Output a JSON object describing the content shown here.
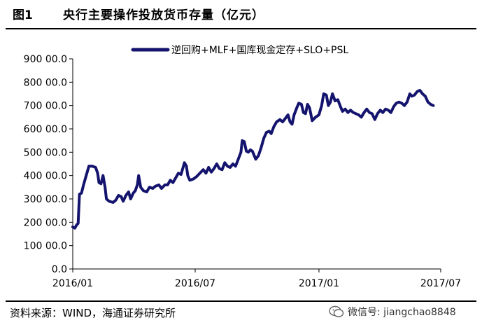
{
  "header": {
    "fig_label": "图1",
    "title": "央行主要操作投放货币存量（亿元）"
  },
  "source": "资料来源：WIND，海通证券研究所",
  "watermark": {
    "icon": "wechat-icon",
    "text": "微信号: jiangchao8848"
  },
  "chart_data": {
    "type": "line",
    "title": "",
    "xlabel": "",
    "ylabel": "",
    "legend_position": "top-right",
    "grid": false,
    "ylim": [
      0,
      90000
    ],
    "y_ticks": [
      0,
      10000,
      20000,
      30000,
      40000,
      50000,
      60000,
      70000,
      80000,
      90000
    ],
    "y_tick_labels": [
      "0.0",
      "100 00.0",
      "200 00.0",
      "300 00.0",
      "400 00.0",
      "500 00.0",
      "600 00.0",
      "700 00.0",
      "800 00.0",
      "900 00.0"
    ],
    "x_ticks": [
      "2016-01-01",
      "2016-07-01",
      "2017-01-01",
      "2017-07-01"
    ],
    "x_tick_labels": [
      "2016/01",
      "2016/07",
      "2017/01",
      "2017/07"
    ],
    "series": [
      {
        "name": "逆回购+MLF+国库现金定存+SLO+PSL",
        "color": "#14146e",
        "points": [
          [
            "2016-01-01",
            18000
          ],
          [
            "2016-01-04",
            17500
          ],
          [
            "2016-01-07",
            19000
          ],
          [
            "2016-01-09",
            19500
          ],
          [
            "2016-01-11",
            32000
          ],
          [
            "2016-01-14",
            32500
          ],
          [
            "2016-01-17",
            36000
          ],
          [
            "2016-01-21",
            40000
          ],
          [
            "2016-01-25",
            44000
          ],
          [
            "2016-01-30",
            44000
          ],
          [
            "2016-02-04",
            43500
          ],
          [
            "2016-02-07",
            41000
          ],
          [
            "2016-02-09",
            37000
          ],
          [
            "2016-02-12",
            36500
          ],
          [
            "2016-02-15",
            40000
          ],
          [
            "2016-02-18",
            35000
          ],
          [
            "2016-02-20",
            30000
          ],
          [
            "2016-02-24",
            29000
          ],
          [
            "2016-03-01",
            28500
          ],
          [
            "2016-03-05",
            29500
          ],
          [
            "2016-03-09",
            31500
          ],
          [
            "2016-03-13",
            31000
          ],
          [
            "2016-03-16",
            29000
          ],
          [
            "2016-03-20",
            31500
          ],
          [
            "2016-03-24",
            33000
          ],
          [
            "2016-03-27",
            30000
          ],
          [
            "2016-03-31",
            32500
          ],
          [
            "2016-04-03",
            33500
          ],
          [
            "2016-04-06",
            36000
          ],
          [
            "2016-04-08",
            40000
          ],
          [
            "2016-04-11",
            35000
          ],
          [
            "2016-04-15",
            33500
          ],
          [
            "2016-04-20",
            33000
          ],
          [
            "2016-04-24",
            35000
          ],
          [
            "2016-04-29",
            34500
          ],
          [
            "2016-05-03",
            35500
          ],
          [
            "2016-05-08",
            36000
          ],
          [
            "2016-05-12",
            34500
          ],
          [
            "2016-05-17",
            36000
          ],
          [
            "2016-05-21",
            36000
          ],
          [
            "2016-05-25",
            38000
          ],
          [
            "2016-05-29",
            37000
          ],
          [
            "2016-06-02",
            39000
          ],
          [
            "2016-06-06",
            41000
          ],
          [
            "2016-06-10",
            40500
          ],
          [
            "2016-06-13",
            43500
          ],
          [
            "2016-06-15",
            45500
          ],
          [
            "2016-06-18",
            44000
          ],
          [
            "2016-06-20",
            40000
          ],
          [
            "2016-06-23",
            38000
          ],
          [
            "2016-06-28",
            38500
          ],
          [
            "2016-07-03",
            39500
          ],
          [
            "2016-07-08",
            41000
          ],
          [
            "2016-07-13",
            42500
          ],
          [
            "2016-07-17",
            41000
          ],
          [
            "2016-07-21",
            43500
          ],
          [
            "2016-07-25",
            41500
          ],
          [
            "2016-07-29",
            43000
          ],
          [
            "2016-08-02",
            45000
          ],
          [
            "2016-08-06",
            43000
          ],
          [
            "2016-08-10",
            42500
          ],
          [
            "2016-08-14",
            45500
          ],
          [
            "2016-08-18",
            44000
          ],
          [
            "2016-08-22",
            43500
          ],
          [
            "2016-08-26",
            45000
          ],
          [
            "2016-08-30",
            44000
          ],
          [
            "2016-09-03",
            47000
          ],
          [
            "2016-09-07",
            50000
          ],
          [
            "2016-09-09",
            55000
          ],
          [
            "2016-09-12",
            54500
          ],
          [
            "2016-09-15",
            50500
          ],
          [
            "2016-09-18",
            50000
          ],
          [
            "2016-09-21",
            51000
          ],
          [
            "2016-09-24",
            50500
          ],
          [
            "2016-09-29",
            47000
          ],
          [
            "2016-10-03",
            48500
          ],
          [
            "2016-10-07",
            52000
          ],
          [
            "2016-10-11",
            56000
          ],
          [
            "2016-10-15",
            58500
          ],
          [
            "2016-10-19",
            59000
          ],
          [
            "2016-10-22",
            58000
          ],
          [
            "2016-10-26",
            61000
          ],
          [
            "2016-10-30",
            63000
          ],
          [
            "2016-11-04",
            64000
          ],
          [
            "2016-11-08",
            63000
          ],
          [
            "2016-11-12",
            64500
          ],
          [
            "2016-11-16",
            66000
          ],
          [
            "2016-11-19",
            63000
          ],
          [
            "2016-11-22",
            62000
          ],
          [
            "2016-11-25",
            66000
          ],
          [
            "2016-11-29",
            69000
          ],
          [
            "2016-12-02",
            71000
          ],
          [
            "2016-12-06",
            70500
          ],
          [
            "2016-12-09",
            67000
          ],
          [
            "2016-12-12",
            66500
          ],
          [
            "2016-12-15",
            70500
          ],
          [
            "2016-12-18",
            69000
          ],
          [
            "2016-12-22",
            63500
          ],
          [
            "2016-12-27",
            65000
          ],
          [
            "2017-01-01",
            66000
          ],
          [
            "2017-01-05",
            70000
          ],
          [
            "2017-01-08",
            75000
          ],
          [
            "2017-01-12",
            74500
          ],
          [
            "2017-01-15",
            70000
          ],
          [
            "2017-01-18",
            71500
          ],
          [
            "2017-01-21",
            75000
          ],
          [
            "2017-01-25",
            72000
          ],
          [
            "2017-01-29",
            72500
          ],
          [
            "2017-02-02",
            69500
          ],
          [
            "2017-02-05",
            67500
          ],
          [
            "2017-02-09",
            68500
          ],
          [
            "2017-02-13",
            67000
          ],
          [
            "2017-02-17",
            68000
          ],
          [
            "2017-02-21",
            67000
          ],
          [
            "2017-02-25",
            66500
          ],
          [
            "2017-03-01",
            66000
          ],
          [
            "2017-03-05",
            65000
          ],
          [
            "2017-03-09",
            67000
          ],
          [
            "2017-03-13",
            68500
          ],
          [
            "2017-03-17",
            67000
          ],
          [
            "2017-03-21",
            66500
          ],
          [
            "2017-03-25",
            64000
          ],
          [
            "2017-03-29",
            66500
          ],
          [
            "2017-04-02",
            68000
          ],
          [
            "2017-04-06",
            67000
          ],
          [
            "2017-04-10",
            68500
          ],
          [
            "2017-04-14",
            68000
          ],
          [
            "2017-04-18",
            67000
          ],
          [
            "2017-04-22",
            69500
          ],
          [
            "2017-04-26",
            71000
          ],
          [
            "2017-04-30",
            71500
          ],
          [
            "2017-05-04",
            71000
          ],
          [
            "2017-05-08",
            70000
          ],
          [
            "2017-05-12",
            71500
          ],
          [
            "2017-05-16",
            75000
          ],
          [
            "2017-05-19",
            74000
          ],
          [
            "2017-05-23",
            74500
          ],
          [
            "2017-05-27",
            76000
          ],
          [
            "2017-05-31",
            76500
          ],
          [
            "2017-06-04",
            75000
          ],
          [
            "2017-06-08",
            74000
          ],
          [
            "2017-06-12",
            71500
          ],
          [
            "2017-06-16",
            70500
          ],
          [
            "2017-06-20",
            70000
          ]
        ]
      }
    ]
  }
}
